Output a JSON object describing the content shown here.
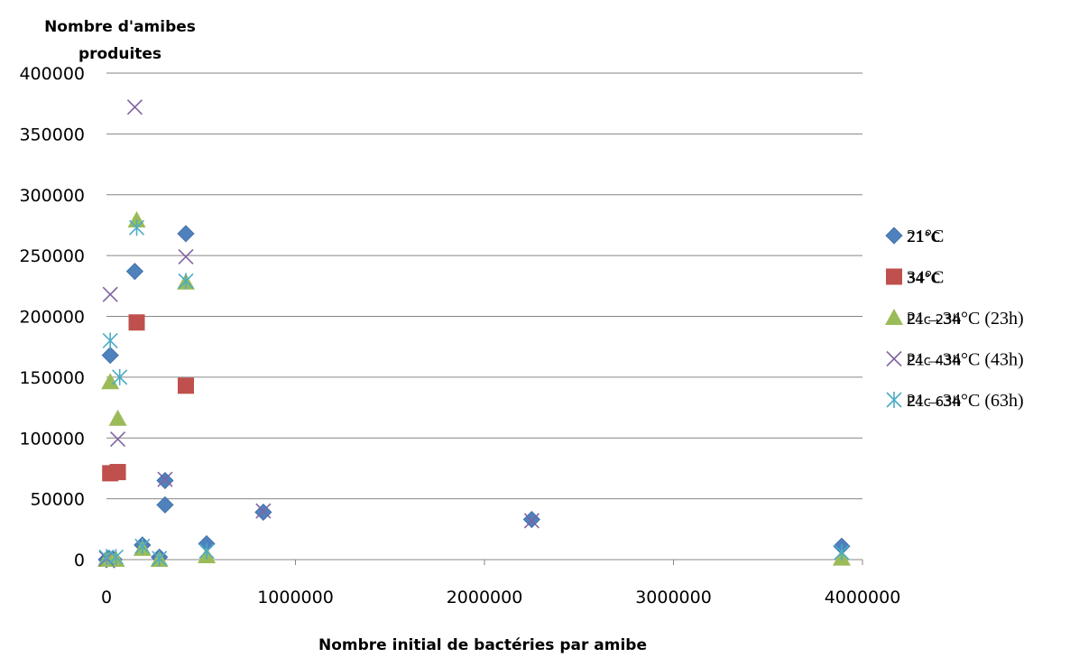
{
  "chart_data": {
    "type": "scatter",
    "title": "",
    "ylabel": "Nombre d'amibes produites",
    "xlabel": "Nombre initial de bactéries par amibe",
    "xlim": [
      0,
      4000000
    ],
    "ylim": [
      0,
      400000
    ],
    "xticks": [
      "0",
      "1000000",
      "2000000",
      "3000000",
      "4000000"
    ],
    "yticks": [
      "0",
      "50000",
      "100000",
      "150000",
      "200000",
      "250000",
      "300000",
      "350000",
      "400000"
    ],
    "grid": "horizontal",
    "legend_position": "right",
    "series": [
      {
        "name": "21°C",
        "code": "21°C",
        "marker": "diamond",
        "color": "#4F81BD",
        "points": [
          [
            0,
            0
          ],
          [
            10000,
            1000
          ],
          [
            20000,
            168000
          ],
          [
            40000,
            0
          ],
          [
            150000,
            237000
          ],
          [
            190000,
            12000
          ],
          [
            280000,
            2000
          ],
          [
            310000,
            45000
          ],
          [
            310000,
            65000
          ],
          [
            420000,
            268000
          ],
          [
            530000,
            13000
          ],
          [
            830000,
            39000
          ],
          [
            2250000,
            33000
          ],
          [
            3890000,
            11000
          ]
        ]
      },
      {
        "name": "34°C",
        "code": "34°C",
        "marker": "square",
        "color": "#C0504D",
        "points": [
          [
            20000,
            71000
          ],
          [
            60000,
            72000
          ],
          [
            160000,
            195000
          ],
          [
            420000,
            143000
          ]
        ]
      },
      {
        "name": "21→34°C (23h)",
        "code": "P4c 23h",
        "marker": "triangle",
        "color": "#9BBB59",
        "points": [
          [
            0,
            0
          ],
          [
            20000,
            0
          ],
          [
            20000,
            146000
          ],
          [
            50000,
            0
          ],
          [
            60000,
            116000
          ],
          [
            160000,
            279000
          ],
          [
            190000,
            9000
          ],
          [
            280000,
            0
          ],
          [
            420000,
            228000
          ],
          [
            530000,
            3000
          ],
          [
            3890000,
            1000
          ]
        ]
      },
      {
        "name": "21→34°C (43h)",
        "code": "P4c 43h",
        "marker": "x",
        "color": "#8064A2",
        "points": [
          [
            0,
            1000
          ],
          [
            20000,
            218000
          ],
          [
            60000,
            99000
          ],
          [
            150000,
            372000
          ],
          [
            310000,
            66000
          ],
          [
            420000,
            249000
          ],
          [
            830000,
            40000
          ],
          [
            2250000,
            32000
          ]
        ]
      },
      {
        "name": "21→34°C (63h)",
        "code": "P4c 63h",
        "marker": "star",
        "color": "#4BACC6",
        "points": [
          [
            0,
            2000
          ],
          [
            20000,
            180000
          ],
          [
            50000,
            2000
          ],
          [
            70000,
            150000
          ],
          [
            160000,
            273000
          ],
          [
            190000,
            11000
          ],
          [
            280000,
            1000
          ],
          [
            420000,
            229000
          ],
          [
            530000,
            7000
          ],
          [
            3890000,
            6000
          ]
        ]
      }
    ]
  }
}
